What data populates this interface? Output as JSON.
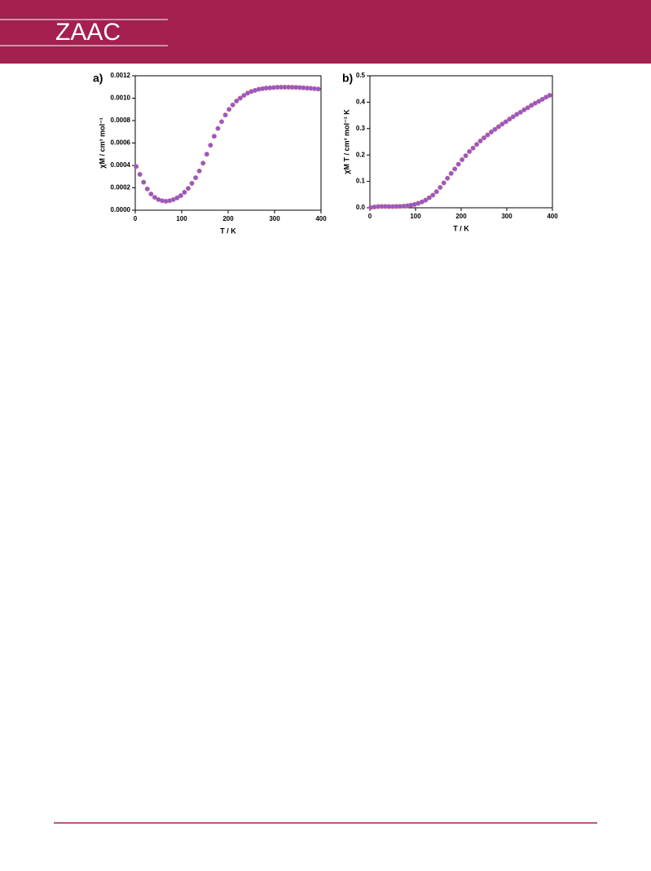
{
  "header": {
    "title": "ZAAC"
  },
  "chart_data": [
    {
      "type": "scatter",
      "panel": "a)",
      "xlabel": "T / K",
      "ylabel": "χM / cm³ mol⁻¹",
      "color": "#8a5cd0",
      "xlim": [
        0,
        400
      ],
      "xticks": [
        0,
        100,
        200,
        300,
        400
      ],
      "ylim": [
        0,
        0.0012
      ],
      "yticks": [
        {
          "value": 0,
          "label": "0.0000"
        },
        {
          "value": 0.0002,
          "label": "0.0002"
        },
        {
          "value": 0.0004,
          "label": "0.0004"
        },
        {
          "value": 0.0006,
          "label": "0.0006"
        },
        {
          "value": 0.0008,
          "label": "0.0008"
        },
        {
          "value": 0.001,
          "label": "0.0010"
        },
        {
          "value": 0.0012,
          "label": "0.0012"
        }
      ],
      "x": [
        2,
        10,
        18,
        26,
        34,
        42,
        50,
        58,
        66,
        74,
        82,
        90,
        98,
        106,
        114,
        122,
        130,
        138,
        146,
        154,
        162,
        170,
        178,
        186,
        194,
        202,
        210,
        218,
        226,
        234,
        242,
        250,
        258,
        266,
        274,
        282,
        290,
        298,
        306,
        314,
        322,
        330,
        338,
        346,
        354,
        362,
        370,
        378,
        386,
        394
      ],
      "values": [
        0.00039,
        0.00032,
        0.00025,
        0.00019,
        0.000145,
        0.000115,
        9.5e-05,
        8.5e-05,
        8e-05,
        8.5e-05,
        9.5e-05,
        0.00011,
        0.00013,
        0.00016,
        0.000195,
        0.00024,
        0.00029,
        0.00035,
        0.00042,
        0.0005,
        0.00058,
        0.00066,
        0.00073,
        0.00079,
        0.00085,
        0.0009,
        0.00094,
        0.000975,
        0.001,
        0.001025,
        0.001045,
        0.00106,
        0.00107,
        0.00108,
        0.001085,
        0.00109,
        0.001092,
        0.001095,
        0.001097,
        0.001098,
        0.001098,
        0.001098,
        0.001097,
        0.001096,
        0.001095,
        0.001093,
        0.00109,
        0.001088,
        0.001085,
        0.001082
      ]
    },
    {
      "type": "scatter",
      "panel": "b)",
      "xlabel": "T / K",
      "ylabel": "χM T / cm³ mol⁻¹ K",
      "color": "#8a5cd0",
      "xlim": [
        0,
        400
      ],
      "xticks": [
        0,
        100,
        200,
        300,
        400
      ],
      "ylim": [
        0,
        0.5
      ],
      "yticks": [
        {
          "value": 0,
          "label": "0.0"
        },
        0.1,
        0.2,
        0.3,
        0.4,
        0.5
      ],
      "x": [
        2,
        10,
        18,
        26,
        34,
        42,
        50,
        58,
        66,
        74,
        82,
        90,
        98,
        106,
        114,
        122,
        130,
        138,
        146,
        154,
        162,
        170,
        178,
        186,
        194,
        202,
        210,
        218,
        226,
        234,
        242,
        250,
        258,
        266,
        274,
        282,
        290,
        298,
        306,
        314,
        322,
        330,
        338,
        346,
        354,
        362,
        370,
        378,
        386,
        394
      ],
      "values": [
        0.001,
        0.0032,
        0.0045,
        0.0049,
        0.0049,
        0.0048,
        0.0048,
        0.0049,
        0.0053,
        0.0063,
        0.0078,
        0.0099,
        0.0127,
        0.017,
        0.022,
        0.029,
        0.038,
        0.048,
        0.061,
        0.077,
        0.094,
        0.112,
        0.13,
        0.147,
        0.165,
        0.182,
        0.197,
        0.213,
        0.226,
        0.24,
        0.253,
        0.265,
        0.276,
        0.287,
        0.297,
        0.307,
        0.317,
        0.326,
        0.336,
        0.345,
        0.354,
        0.362,
        0.371,
        0.379,
        0.388,
        0.396,
        0.403,
        0.411,
        0.419,
        0.426
      ]
    }
  ]
}
